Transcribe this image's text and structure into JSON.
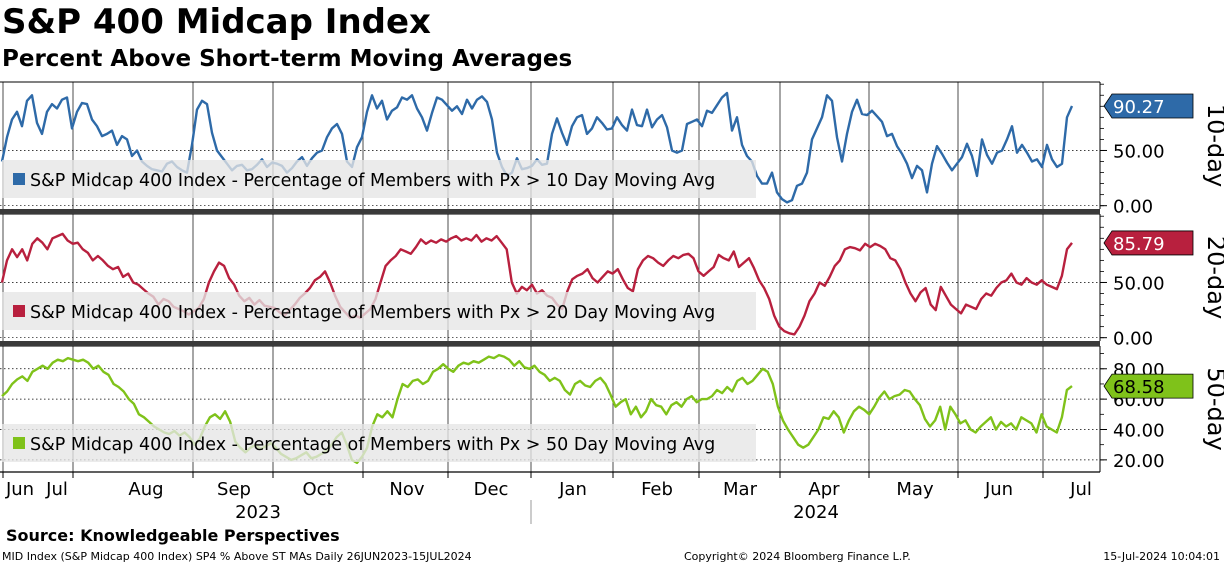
{
  "title": "S&P 400 Midcap Index",
  "subtitle": "Percent Above Short-term Moving Averages",
  "source": "Source: Knowledgeable Perspectives",
  "footer": {
    "left": "MID Index (S&P Midcap 400 Index) SP4 % Above ST MAs  Daily 26JUN2023-15JUL2024",
    "center": "Copyright© 2024 Bloomberg Finance L.P.",
    "right": "15-Jul-2024 10:04:01"
  },
  "chart_data": {
    "type": "line",
    "x_start": "2023-06-26",
    "x_end": "2024-07-15",
    "months": [
      "Jun",
      "Jul",
      "Aug",
      "Sep",
      "Oct",
      "Nov",
      "Dec",
      "Jan",
      "Feb",
      "Mar",
      "Apr",
      "May",
      "Jun",
      "Jul"
    ],
    "years": [
      "2023",
      "2024"
    ],
    "panels": [
      {
        "name": "10-day",
        "side_label": "10-day",
        "color": "#2e6aa8",
        "badge_color": "#2e6aa8",
        "legend": "S&P Midcap 400 Index - Percentage of Members with Px > 10 Day Moving Avg",
        "y_ticks": [
          "50.00",
          "0.00"
        ],
        "y_tick_values": [
          50,
          0
        ],
        "ylim": [
          -3,
          112
        ],
        "last_value": 90.27,
        "last_label": "90.27",
        "values": [
          40,
          62,
          78,
          85,
          72,
          95,
          100,
          75,
          65,
          85,
          92,
          88,
          96,
          98,
          70,
          85,
          93,
          92,
          78,
          72,
          63,
          65,
          68,
          55,
          63,
          60,
          45,
          50,
          40,
          36,
          33,
          32,
          31,
          38,
          40,
          35,
          32,
          30,
          55,
          87,
          95,
          92,
          66,
          50,
          44,
          38,
          32,
          36,
          37,
          32,
          33,
          37,
          42,
          35,
          39,
          38,
          36,
          30,
          34,
          40,
          44,
          36,
          43,
          48,
          50,
          62,
          70,
          74,
          65,
          40,
          35,
          53,
          62,
          85,
          100,
          88,
          95,
          78,
          86,
          89,
          98,
          96,
          100,
          88,
          80,
          68,
          84,
          98,
          96,
          91,
          86,
          90,
          83,
          96,
          88,
          96,
          99,
          94,
          78,
          48,
          35,
          27,
          30,
          43,
          33,
          34,
          36,
          42,
          37,
          38,
          65,
          79,
          66,
          55,
          72,
          80,
          82,
          65,
          70,
          80,
          75,
          69,
          70,
          80,
          73,
          68,
          87,
          73,
          72,
          87,
          71,
          78,
          82,
          71,
          50,
          48,
          50,
          74,
          76,
          78,
          72,
          86,
          84,
          91,
          98,
          102,
          68,
          80,
          55,
          45,
          40,
          27,
          20,
          20,
          30,
          12,
          6,
          3,
          5,
          18,
          20,
          30,
          60,
          70,
          80,
          100,
          95,
          62,
          40,
          65,
          85,
          96,
          83,
          82,
          86,
          81,
          76,
          63,
          65,
          54,
          47,
          38,
          25,
          36,
          32,
          12,
          38,
          54,
          47,
          39,
          32,
          38,
          44,
          56,
          45,
          27,
          60,
          46,
          38,
          48,
          50,
          60,
          72,
          48,
          55,
          48,
          40,
          42,
          35,
          55,
          42,
          35,
          38,
          80,
          90.27
        ]
      },
      {
        "name": "20-day",
        "side_label": "20-day",
        "color": "#b8203e",
        "badge_color": "#b8203e",
        "legend": "S&P Midcap 400 Index - Percentage of Members with Px > 20 Day Moving Avg",
        "y_ticks": [
          "50.00",
          "0.00"
        ],
        "y_tick_values": [
          50,
          0
        ],
        "ylim": [
          -3,
          112
        ],
        "last_value": 85.79,
        "last_label": "85.79",
        "values": [
          50,
          70,
          80,
          73,
          80,
          70,
          85,
          90,
          86,
          80,
          90,
          92,
          94,
          88,
          85,
          86,
          80,
          77,
          70,
          74,
          70,
          65,
          62,
          64,
          55,
          58,
          50,
          48,
          44,
          40,
          37,
          30,
          35,
          33,
          28,
          26,
          24,
          21,
          24,
          27,
          35,
          50,
          60,
          68,
          65,
          54,
          48,
          38,
          33,
          36,
          30,
          34,
          29,
          28,
          27,
          23,
          20,
          25,
          30,
          36,
          40,
          45,
          52,
          55,
          60,
          50,
          38,
          28,
          23,
          18,
          20,
          18,
          22,
          26,
          35,
          50,
          65,
          70,
          74,
          80,
          78,
          76,
          82,
          89,
          85,
          88,
          86,
          89,
          87,
          90,
          92,
          88,
          90,
          88,
          93,
          87,
          90,
          88,
          92,
          86,
          80,
          50,
          40,
          46,
          43,
          48,
          40,
          43,
          38,
          36,
          30,
          26,
          42,
          53,
          56,
          58,
          62,
          54,
          50,
          55,
          60,
          58,
          62,
          53,
          45,
          42,
          62,
          70,
          74,
          72,
          68,
          65,
          70,
          74,
          72,
          75,
          76,
          72,
          60,
          56,
          60,
          64,
          75,
          72,
          70,
          78,
          64,
          68,
          72,
          63,
          52,
          45,
          35,
          20,
          10,
          6,
          4,
          3,
          10,
          20,
          33,
          40,
          50,
          47,
          55,
          65,
          70,
          80,
          82,
          81,
          79,
          85,
          82,
          85,
          83,
          80,
          72,
          70,
          62,
          50,
          40,
          33,
          41,
          45,
          30,
          25,
          46,
          38,
          30,
          26,
          22,
          30,
          28,
          26,
          35,
          40,
          38,
          45,
          50,
          52,
          58,
          50,
          48,
          54,
          50,
          48,
          52,
          48,
          46,
          44,
          56,
          80,
          85.79
        ]
      },
      {
        "name": "50-day",
        "side_label": "50-day",
        "color": "#7fc21a",
        "badge_color": "#7fc21a",
        "legend": "S&P Midcap 400 Index - Percentage of Members with Px > 50 Day Moving Avg",
        "y_ticks": [
          "80.00",
          "60.00",
          "40.00",
          "20.00"
        ],
        "y_tick_values": [
          80,
          60,
          40,
          20
        ],
        "ylim": [
          12,
          95
        ],
        "last_value": 68.58,
        "last_label": "68.58",
        "values": [
          62,
          65,
          70,
          73,
          75,
          72,
          78,
          80,
          82,
          80,
          84,
          86,
          85,
          87,
          86,
          85,
          86,
          84,
          80,
          82,
          78,
          76,
          70,
          68,
          65,
          60,
          57,
          50,
          48,
          45,
          42,
          40,
          38,
          37,
          39,
          36,
          38,
          35,
          30,
          34,
          42,
          48,
          50,
          47,
          52,
          45,
          32,
          28,
          25,
          28,
          30,
          27,
          29,
          31,
          28,
          24,
          22,
          20,
          21,
          23,
          25,
          21,
          22,
          24,
          26,
          30,
          35,
          38,
          30,
          20,
          18,
          22,
          28,
          42,
          50,
          48,
          52,
          48,
          60,
          70,
          68,
          72,
          73,
          70,
          72,
          78,
          80,
          83,
          80,
          78,
          82,
          84,
          83,
          85,
          84,
          86,
          88,
          87,
          89,
          88,
          86,
          82,
          85,
          81,
          80,
          82,
          78,
          76,
          72,
          74,
          72,
          66,
          63,
          70,
          72,
          69,
          68,
          72,
          74,
          70,
          63,
          55,
          58,
          60,
          50,
          55,
          48,
          52,
          60,
          56,
          55,
          50,
          56,
          58,
          55,
          60,
          62,
          58,
          60,
          60,
          62,
          66,
          64,
          68,
          65,
          72,
          74,
          70,
          72,
          76,
          80,
          78,
          70,
          55,
          46,
          40,
          35,
          30,
          28,
          30,
          35,
          40,
          48,
          47,
          52,
          48,
          38,
          46,
          52,
          55,
          53,
          50,
          55,
          61,
          65,
          60,
          62,
          63,
          66,
          65,
          60,
          56,
          47,
          42,
          46,
          55,
          40,
          55,
          50,
          44,
          46,
          40,
          38,
          42,
          45,
          48,
          40,
          45,
          42,
          44,
          40,
          48,
          46,
          44,
          38,
          50,
          42,
          40,
          38,
          48,
          66,
          68.58
        ]
      }
    ]
  }
}
